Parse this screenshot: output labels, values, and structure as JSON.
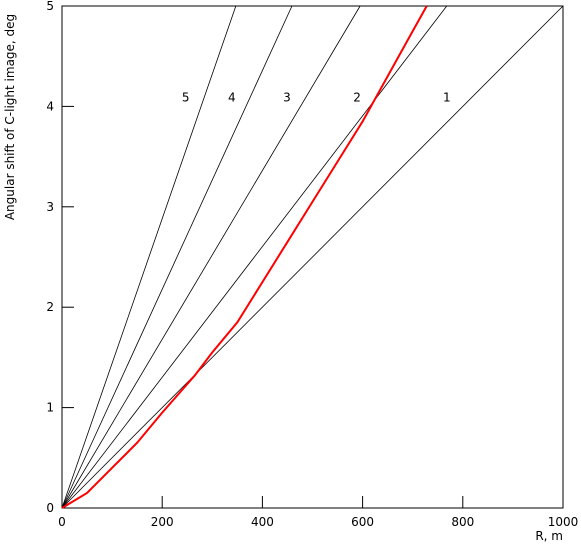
{
  "chart_data": {
    "type": "line",
    "x_label": "R, m",
    "y_label": "Angular shift of C-light image, deg",
    "xlim": [
      0,
      1000
    ],
    "ylim": [
      0,
      5
    ],
    "xticks": [
      0,
      200,
      400,
      600,
      800,
      1000
    ],
    "yticks": [
      0,
      1,
      2,
      3,
      4,
      5
    ],
    "series": [
      {
        "name": "1",
        "color": "#000000",
        "x": [
          0,
          1000
        ],
        "values": [
          0,
          5
        ]
      },
      {
        "name": "2",
        "color": "#000000",
        "x": [
          0,
          768
        ],
        "values": [
          0,
          5
        ]
      },
      {
        "name": "3",
        "color": "#000000",
        "x": [
          0,
          595
        ],
        "values": [
          0,
          5
        ]
      },
      {
        "name": "4",
        "color": "#000000",
        "x": [
          0,
          459
        ],
        "values": [
          0,
          5
        ]
      },
      {
        "name": "5",
        "color": "#000000",
        "x": [
          0,
          347
        ],
        "values": [
          0,
          5
        ]
      },
      {
        "color": "#ff0000",
        "x": [
          0,
          50,
          100,
          150,
          200,
          265,
          300,
          350,
          400,
          450,
          500,
          550,
          600,
          650,
          700,
          728
        ],
        "values": [
          0,
          0.15,
          0.4,
          0.65,
          0.95,
          1.32,
          1.55,
          1.85,
          2.25,
          2.65,
          3.05,
          3.45,
          3.85,
          4.3,
          4.75,
          5
        ]
      }
    ],
    "annotations": [
      {
        "text": "5",
        "x": 247,
        "y": 4.05
      },
      {
        "text": "4",
        "x": 339,
        "y": 4.05
      },
      {
        "text": "3",
        "x": 449,
        "y": 4.05
      },
      {
        "text": "2",
        "x": 589,
        "y": 4.05
      },
      {
        "text": "1",
        "x": 768,
        "y": 4.05
      }
    ]
  }
}
